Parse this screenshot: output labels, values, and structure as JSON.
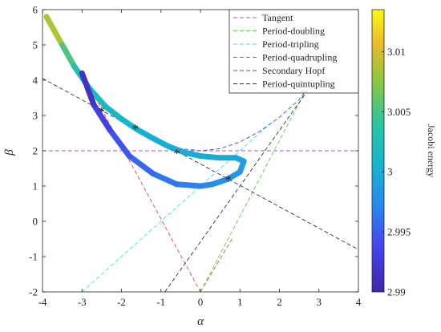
{
  "chart_data": {
    "type": "line",
    "xlabel": "α",
    "ylabel": "β",
    "xlim": [
      -4,
      4
    ],
    "ylim": [
      -2,
      6
    ],
    "xticks": [
      "-4",
      "-3",
      "-2",
      "-1",
      "0",
      "1",
      "2",
      "3",
      "4"
    ],
    "yticks": [
      "-2",
      "-1",
      "0",
      "1",
      "2",
      "3",
      "4",
      "5",
      "6"
    ],
    "grid": false,
    "legend_position": "top-right",
    "legend": [
      {
        "name": "Tangent",
        "color": "#e8474a"
      },
      {
        "name": "Period-doubling",
        "color": "#4cd43c"
      },
      {
        "name": "Period-tripling",
        "color": "#35e0e8"
      },
      {
        "name": "Period-quadrupling",
        "color": "#d43ad0"
      },
      {
        "name": "Secondary Hopf",
        "color": "#3a4ee0"
      },
      {
        "name": "Period-quintupling",
        "color": "#333333"
      }
    ],
    "lines": [
      {
        "name": "Tangent",
        "points": [
          [
            -2.9,
            4.0
          ],
          [
            0.0,
            -2.0
          ]
        ]
      },
      {
        "name": "Tangent",
        "points": [
          [
            0.0,
            -2.0
          ],
          [
            0.8,
            -0.5
          ]
        ]
      },
      {
        "name": "Period-doubling",
        "points": [
          [
            0.0,
            -2.0
          ],
          [
            2.8,
            4.0
          ]
        ]
      },
      {
        "name": "Period-tripling",
        "points": [
          [
            -3.0,
            -2.0
          ],
          [
            1.8,
            2.8
          ]
        ]
      },
      {
        "name": "Period-quadrupling",
        "points": [
          [
            -4.0,
            2.0
          ],
          [
            4.0,
            2.0
          ]
        ]
      },
      {
        "name": "Period-quintupling",
        "points": [
          [
            -4.0,
            4.05
          ],
          [
            4.0,
            -0.8
          ]
        ]
      },
      {
        "name": "Period-quintupling",
        "points": [
          [
            -0.9,
            -2.0
          ],
          [
            2.9,
            4.0
          ]
        ]
      }
    ],
    "hopf_curve": {
      "name": "Secondary Hopf",
      "points": [
        [
          -1.6,
          2.6
        ],
        [
          -1.0,
          2.25
        ],
        [
          -0.5,
          2.06
        ],
        [
          0.0,
          2.0
        ],
        [
          0.5,
          2.06
        ],
        [
          1.0,
          2.25
        ],
        [
          1.5,
          2.55
        ],
        [
          2.0,
          2.95
        ],
        [
          2.5,
          3.45
        ],
        [
          2.8,
          3.9
        ]
      ]
    },
    "orbit_family": {
      "colorbar_label": "Jacobi energy",
      "colorbar_ticks": [
        "2.99",
        "2.995",
        "3",
        "3.005",
        "3.01"
      ],
      "colorbar_range": [
        2.99,
        3.0135
      ],
      "points": [
        {
          "x": -3.9,
          "y": 5.8,
          "e": 3.011
        },
        {
          "x": -3.5,
          "y": 5.0,
          "e": 3.0065
        },
        {
          "x": -3.2,
          "y": 4.4,
          "e": 3.004
        },
        {
          "x": -2.8,
          "y": 3.75,
          "e": 3.002
        },
        {
          "x": -2.4,
          "y": 3.25,
          "e": 3.0015
        },
        {
          "x": -2.0,
          "y": 2.9,
          "e": 3.001
        },
        {
          "x": -1.6,
          "y": 2.6,
          "e": 3.0006
        },
        {
          "x": -1.2,
          "y": 2.35,
          "e": 3.0004
        },
        {
          "x": -0.8,
          "y": 2.12,
          "e": 3.0002
        },
        {
          "x": -0.4,
          "y": 1.95,
          "e": 3.0001
        },
        {
          "x": 0.0,
          "y": 1.85,
          "e": 3.0
        },
        {
          "x": 0.5,
          "y": 1.8,
          "e": 3.0
        },
        {
          "x": 0.9,
          "y": 1.8,
          "e": 2.9995
        },
        {
          "x": 1.1,
          "y": 1.7,
          "e": 2.999
        },
        {
          "x": 1.0,
          "y": 1.4,
          "e": 2.9985
        },
        {
          "x": 0.7,
          "y": 1.2,
          "e": 2.998
        },
        {
          "x": 0.3,
          "y": 1.05,
          "e": 2.9975
        },
        {
          "x": 0.0,
          "y": 1.0,
          "e": 2.997
        },
        {
          "x": -0.6,
          "y": 1.05,
          "e": 2.9965
        },
        {
          "x": -1.2,
          "y": 1.35,
          "e": 2.996
        },
        {
          "x": -1.8,
          "y": 1.85,
          "e": 2.995
        },
        {
          "x": -2.3,
          "y": 2.6,
          "e": 2.994
        },
        {
          "x": -2.7,
          "y": 3.3,
          "e": 2.9925
        },
        {
          "x": -3.0,
          "y": 4.2,
          "e": 2.9905
        }
      ]
    },
    "bifurcation_points": [
      {
        "x": -2.5,
        "y": 3.15
      },
      {
        "x": -1.65,
        "y": 2.65
      },
      {
        "x": -0.6,
        "y": 1.95
      },
      {
        "x": 0.7,
        "y": 1.2
      }
    ]
  }
}
